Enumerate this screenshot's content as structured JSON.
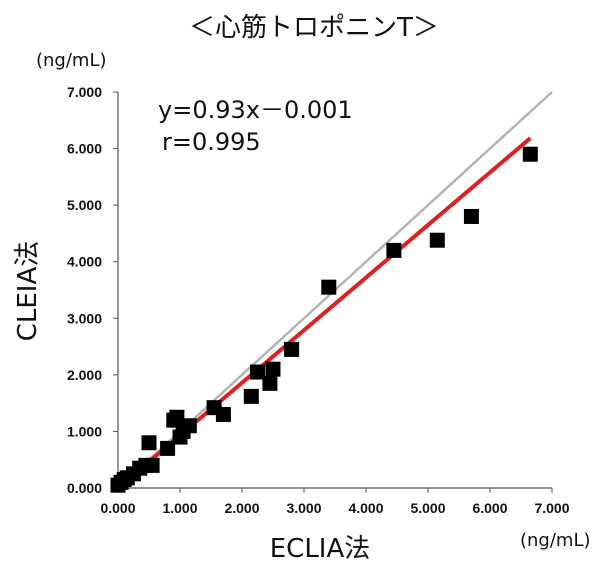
{
  "chart_data": {
    "type": "scatter",
    "title": "＜心筋トロポニンT＞",
    "xlabel": "ECLIA法",
    "ylabel": "CLEIA法",
    "x_unit": "(ng/mL)",
    "y_unit": "(ng/mL)",
    "xlim": [
      0,
      7
    ],
    "ylim": [
      0,
      7
    ],
    "x_ticks": [
      "0.000",
      "1.000",
      "2.000",
      "3.000",
      "4.000",
      "5.000",
      "6.000",
      "7.000"
    ],
    "y_ticks": [
      "0.000",
      "1.000",
      "2.000",
      "3.000",
      "4.000",
      "5.000",
      "6.000",
      "7.000"
    ],
    "regression_text": "y=0.93x－0.001",
    "correlation_text": "r=0.995",
    "regression": {
      "slope": 0.93,
      "intercept": -0.001,
      "x_start": 0.0,
      "x_end": 6.65,
      "color": "#e02020"
    },
    "identity_line": {
      "x_start": 0.0,
      "x_end": 7.0,
      "color": "#b4b4b4"
    },
    "point_color": "#000000",
    "points": [
      {
        "x": 0.0,
        "y": 0.05
      },
      {
        "x": 0.05,
        "y": 0.1
      },
      {
        "x": 0.1,
        "y": 0.15
      },
      {
        "x": 0.15,
        "y": 0.18
      },
      {
        "x": 0.25,
        "y": 0.25
      },
      {
        "x": 0.35,
        "y": 0.35
      },
      {
        "x": 0.45,
        "y": 0.4
      },
      {
        "x": 0.5,
        "y": 0.8
      },
      {
        "x": 0.55,
        "y": 0.4
      },
      {
        "x": 0.8,
        "y": 0.7
      },
      {
        "x": 0.9,
        "y": 1.2
      },
      {
        "x": 0.95,
        "y": 1.25
      },
      {
        "x": 1.0,
        "y": 0.9
      },
      {
        "x": 1.05,
        "y": 1.0
      },
      {
        "x": 1.15,
        "y": 1.1
      },
      {
        "x": 1.55,
        "y": 1.42
      },
      {
        "x": 1.7,
        "y": 1.3
      },
      {
        "x": 2.15,
        "y": 1.62
      },
      {
        "x": 2.25,
        "y": 2.05
      },
      {
        "x": 2.45,
        "y": 1.85
      },
      {
        "x": 2.5,
        "y": 2.1
      },
      {
        "x": 2.8,
        "y": 2.45
      },
      {
        "x": 3.4,
        "y": 3.55
      },
      {
        "x": 4.45,
        "y": 4.2
      },
      {
        "x": 5.15,
        "y": 4.38
      },
      {
        "x": 5.7,
        "y": 4.8
      },
      {
        "x": 6.65,
        "y": 5.9
      }
    ]
  }
}
